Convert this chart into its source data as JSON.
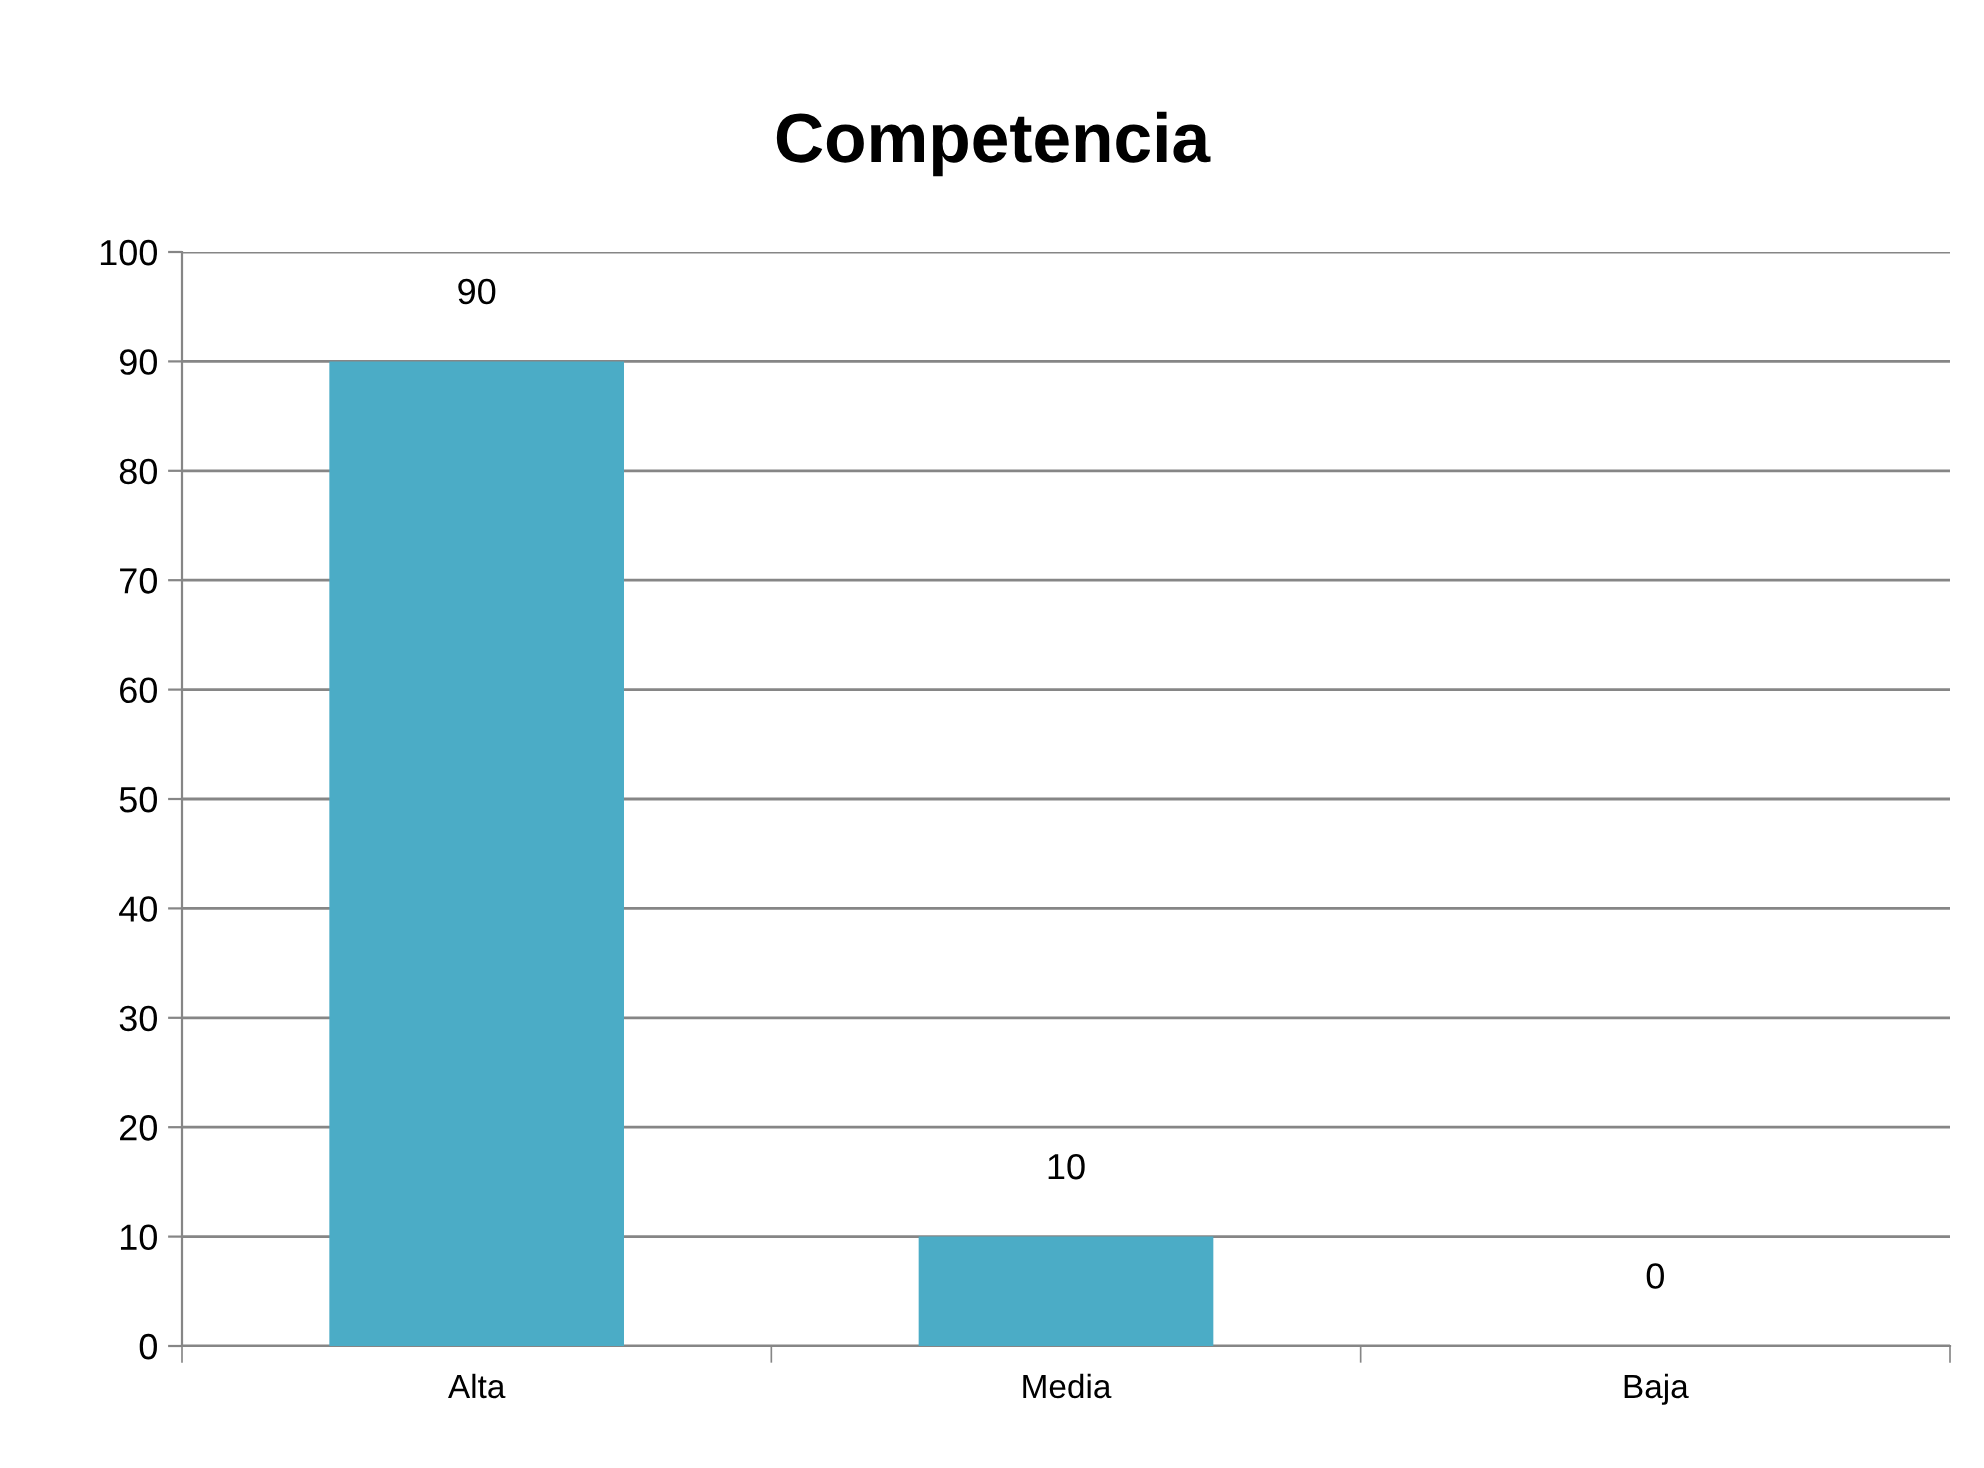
{
  "chart_data": {
    "type": "bar",
    "title": "Competencia",
    "categories": [
      "Alta",
      "Media",
      "Baja"
    ],
    "values": [
      90,
      10,
      0
    ],
    "color": "#4bacc6",
    "ylim": [
      0,
      100
    ],
    "yticks": [
      0,
      10,
      20,
      30,
      40,
      50,
      60,
      70,
      80,
      90,
      100
    ],
    "grid": "y",
    "data_labels": true
  }
}
